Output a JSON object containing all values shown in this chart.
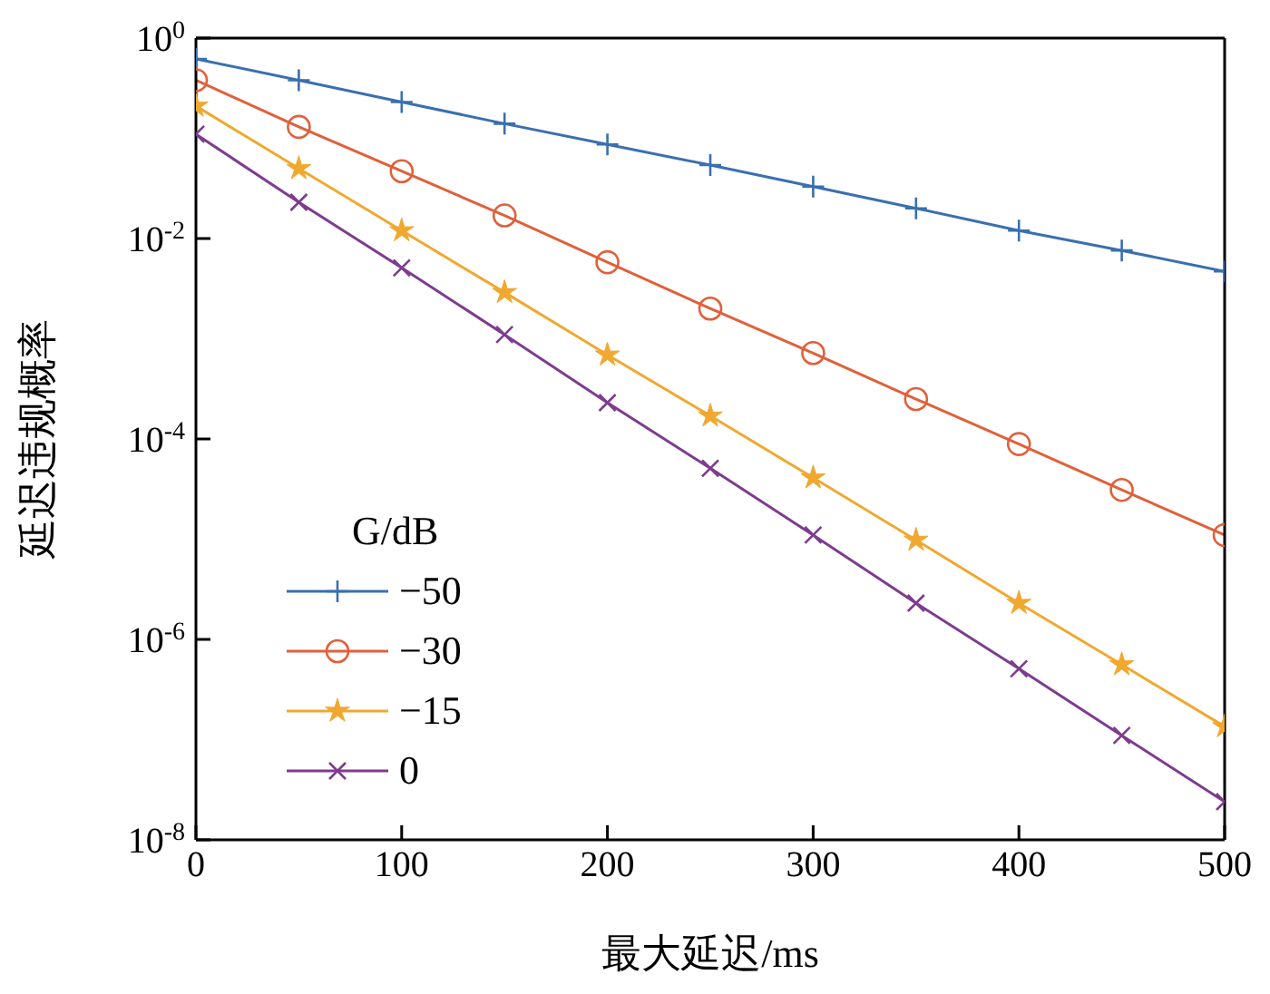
{
  "chart_data": {
    "type": "line",
    "xlabel": "最大延迟/ms",
    "ylabel": "延迟违规概率",
    "legend_title": "G/dB",
    "x": [
      0,
      50,
      100,
      150,
      200,
      250,
      300,
      350,
      400,
      450,
      500
    ],
    "series": [
      {
        "name": "−50",
        "color": "#3a6fb0",
        "marker": "plus",
        "values": [
          0.62,
          0.38,
          0.23,
          0.14,
          0.087,
          0.054,
          0.033,
          0.02,
          0.012,
          0.0076,
          0.0047
        ]
      },
      {
        "name": "−30",
        "color": "#e0603a",
        "marker": "circle",
        "values": [
          0.38,
          0.13,
          0.047,
          0.017,
          0.0058,
          0.002,
          0.00072,
          0.00025,
          8.9e-05,
          3.1e-05,
          1.1e-05
        ]
      },
      {
        "name": "−15",
        "color": "#f0a830",
        "marker": "star",
        "values": [
          0.21,
          0.05,
          0.012,
          0.0029,
          0.00069,
          0.00017,
          4.1e-05,
          9.8e-06,
          2.3e-06,
          5.6e-07,
          1.35e-07
        ]
      },
      {
        "name": "0",
        "color": "#7e3b8f",
        "marker": "cross",
        "values": [
          0.11,
          0.023,
          0.0051,
          0.0011,
          0.00023,
          5.1e-05,
          1.1e-05,
          2.3e-06,
          5.1e-07,
          1.1e-07,
          2.4e-08
        ]
      }
    ],
    "xlim": [
      0,
      500
    ],
    "xticks": [
      0,
      100,
      200,
      300,
      400,
      500
    ],
    "log": true,
    "ylim": [
      1e-08,
      1
    ],
    "yticks": [
      {
        "value": 1e-08,
        "label": "10$^{-8}$"
      },
      {
        "value": 1e-06,
        "label": "10$^{-6}$"
      },
      {
        "value": 0.0001,
        "label": "10$^{-4}$"
      },
      {
        "value": 0.01,
        "label": "10$^{-2}$"
      },
      {
        "value": 1,
        "label": "10$^{0}$"
      }
    ],
    "legend": "bottom left",
    "grid": false,
    "line_style": "solid"
  }
}
